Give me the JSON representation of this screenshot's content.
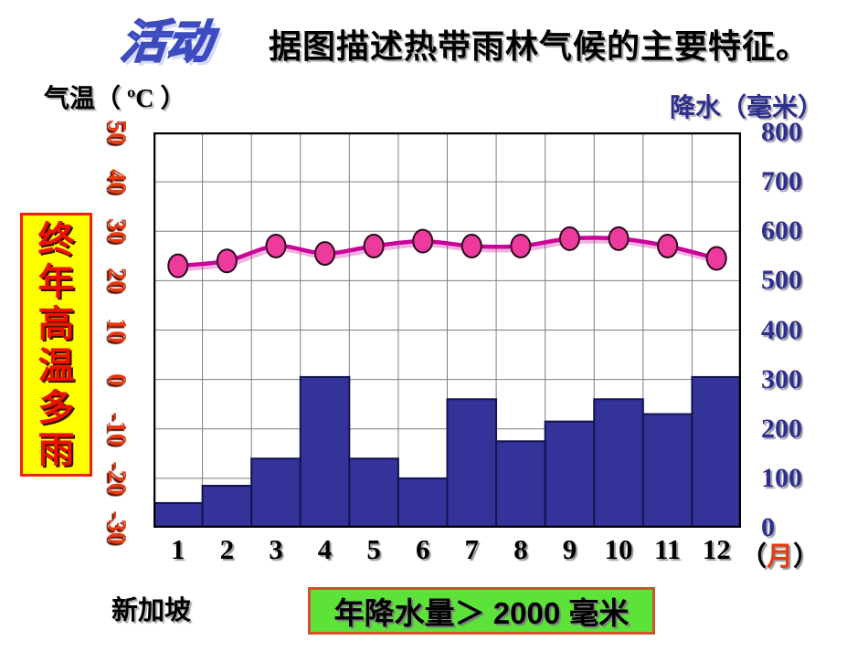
{
  "header": {
    "logo": "活动",
    "title": "据图描述热带雨林气候的主要特征。"
  },
  "axes": {
    "temp_title": "气温（ ºC ）",
    "precip_title": "降水（毫米）",
    "month_unit_open": "（",
    "month_unit": "月",
    "month_unit_close": "）"
  },
  "side_label": {
    "text": "终年高温多雨",
    "chars": [
      "终",
      "年",
      "高",
      "温",
      "多",
      "雨"
    ]
  },
  "footer": {
    "station": "新加坡",
    "callout": "年降水量＞ 2000 毫米"
  },
  "chart_data": {
    "type": "combo-bar-line-climate-graph",
    "categories": [
      "1",
      "2",
      "3",
      "4",
      "5",
      "6",
      "7",
      "8",
      "9",
      "10",
      "11",
      "12"
    ],
    "x_unit": "月",
    "series": [
      {
        "name": "降水（毫米）",
        "type": "bar",
        "axis": "right",
        "values": [
          50,
          85,
          140,
          305,
          140,
          100,
          260,
          175,
          215,
          260,
          230,
          305
        ]
      },
      {
        "name": "气温（ºC）",
        "type": "line",
        "axis": "left",
        "values": [
          23,
          24,
          27,
          25.5,
          27,
          28,
          27,
          27,
          28.5,
          28.5,
          27,
          24.5
        ]
      }
    ],
    "left_axis": {
      "label": "气温（ ºC ）",
      "min": -30,
      "max": 50,
      "ticks": [
        "50",
        "40",
        "30",
        "20",
        "10",
        "0",
        "-10",
        "-20",
        "-30"
      ]
    },
    "right_axis": {
      "label": "降水（毫米）",
      "min": 0,
      "max": 800,
      "ticks": [
        "800",
        "700",
        "600",
        "500",
        "400",
        "300",
        "200",
        "100",
        "0"
      ]
    },
    "grid": true,
    "legend": false,
    "caption": "新加坡"
  },
  "colors": {
    "bar_fill": "#333399",
    "bar_stroke": "#141450",
    "line": "#cc0099",
    "line_shadow": "rgba(204,0,153,0.30)",
    "marker_fill": "#ee3a9c",
    "marker_stroke": "#2a0a20",
    "grid": "#7f7f7f",
    "chart_border": "#000000",
    "temp_tick": "#e8390e",
    "precip_tick": "#2e2e8f",
    "side_box_bg": "#ffff00",
    "side_box_border": "#ee2200",
    "side_text": "#ee1100",
    "callout_bg": "#5de23a",
    "callout_border": "#d0532a",
    "month_unit_red": "#e8390e",
    "logo_fill": "#b9c1f1",
    "logo_outline": "#3c4bc0"
  }
}
